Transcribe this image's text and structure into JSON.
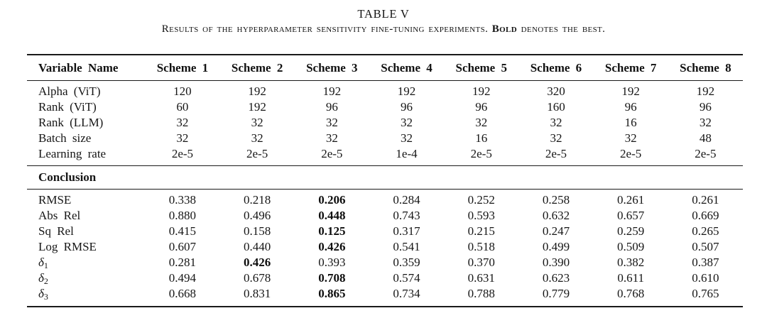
{
  "title": "TABLE V",
  "caption": {
    "prefix": "Results of the hyperparameter sensitivity fine-tuning experiments. ",
    "bold_word": "Bold",
    "suffix": " denotes the best."
  },
  "table": {
    "columns": [
      "Variable Name",
      "Scheme 1",
      "Scheme 2",
      "Scheme 3",
      "Scheme 4",
      "Scheme 5",
      "Scheme 6",
      "Scheme 7",
      "Scheme 8"
    ],
    "hyperparams": [
      {
        "label": "Alpha (ViT)",
        "values": [
          "120",
          "192",
          "192",
          "192",
          "192",
          "320",
          "192",
          "192"
        ]
      },
      {
        "label": "Rank (ViT)",
        "values": [
          "60",
          "192",
          "96",
          "96",
          "96",
          "160",
          "96",
          "96"
        ]
      },
      {
        "label": "Rank (LLM)",
        "values": [
          "32",
          "32",
          "32",
          "32",
          "32",
          "32",
          "16",
          "32"
        ]
      },
      {
        "label": "Batch size",
        "values": [
          "32",
          "32",
          "32",
          "32",
          "16",
          "32",
          "32",
          "48"
        ]
      },
      {
        "label": "Learning rate",
        "values": [
          "2e-5",
          "2e-5",
          "2e-5",
          "1e-4",
          "2e-5",
          "2e-5",
          "2e-5",
          "2e-5"
        ]
      }
    ],
    "section_label": "Conclusion",
    "metrics": [
      {
        "label": "RMSE",
        "values": [
          "0.338",
          "0.218",
          "0.206",
          "0.284",
          "0.252",
          "0.258",
          "0.261",
          "0.261"
        ],
        "bold_index": 2
      },
      {
        "label": "Abs Rel",
        "values": [
          "0.880",
          "0.496",
          "0.448",
          "0.743",
          "0.593",
          "0.632",
          "0.657",
          "0.669"
        ],
        "bold_index": 2
      },
      {
        "label": "Sq Rel",
        "values": [
          "0.415",
          "0.158",
          "0.125",
          "0.317",
          "0.215",
          "0.247",
          "0.259",
          "0.265"
        ],
        "bold_index": 2
      },
      {
        "label": "Log RMSE",
        "values": [
          "0.607",
          "0.440",
          "0.426",
          "0.541",
          "0.518",
          "0.499",
          "0.509",
          "0.507"
        ],
        "bold_index": 2
      },
      {
        "label": "δ",
        "sub": "1",
        "values": [
          "0.281",
          "0.426",
          "0.393",
          "0.359",
          "0.370",
          "0.390",
          "0.382",
          "0.387"
        ],
        "bold_index": 1
      },
      {
        "label": "δ",
        "sub": "2",
        "values": [
          "0.494",
          "0.678",
          "0.708",
          "0.574",
          "0.631",
          "0.623",
          "0.611",
          "0.610"
        ],
        "bold_index": 2
      },
      {
        "label": "δ",
        "sub": "3",
        "values": [
          "0.668",
          "0.831",
          "0.865",
          "0.734",
          "0.788",
          "0.779",
          "0.768",
          "0.765"
        ],
        "bold_index": 2
      }
    ]
  }
}
